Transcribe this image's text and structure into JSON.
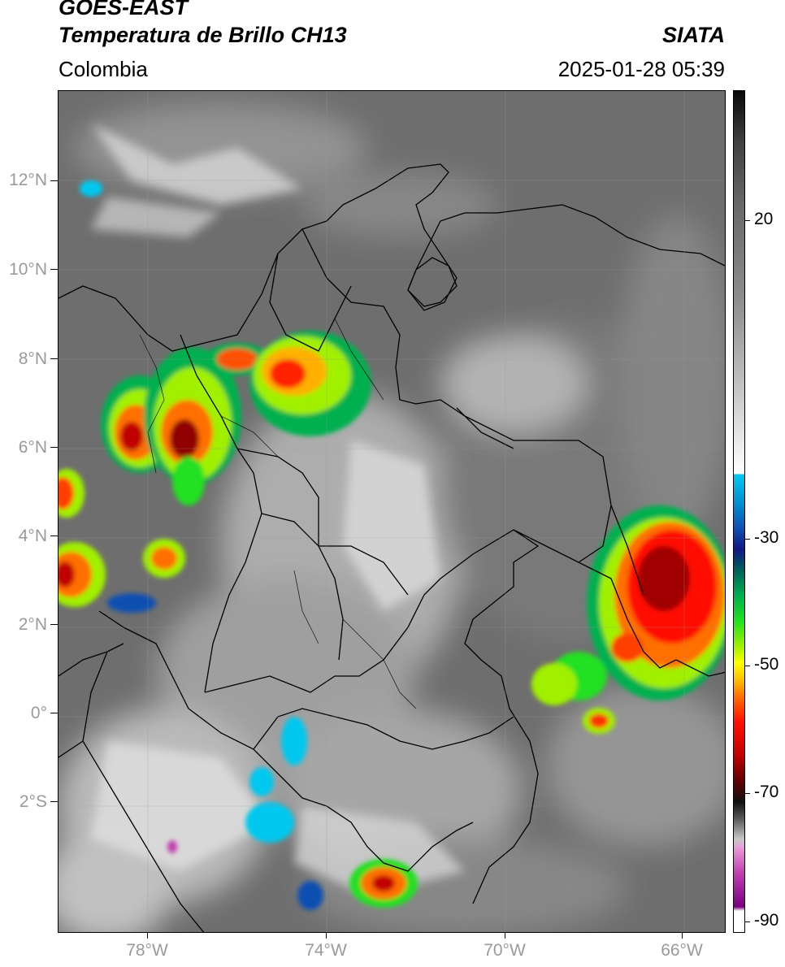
{
  "header": {
    "title_line1": "GOES-EAST",
    "title_line2": "Temperatura de Brillo CH13",
    "region": "Colombia",
    "source": "SIATA",
    "datetime": "2025-01-28 05:39"
  },
  "map": {
    "lon_range": [
      -80,
      -65
    ],
    "lat_range": [
      -5,
      14
    ],
    "lat_ticks": [
      "12°N",
      "10°N",
      "8°N",
      "6°N",
      "4°N",
      "2°N",
      "0°",
      "2°S"
    ],
    "lon_ticks": [
      "78°W",
      "74°W",
      "70°W",
      "66°W"
    ],
    "background": "#6e6e6e"
  },
  "colorbar": {
    "tick_labels": [
      "20",
      "-30",
      "-50",
      "-70",
      "-90"
    ],
    "unit": ""
  }
}
